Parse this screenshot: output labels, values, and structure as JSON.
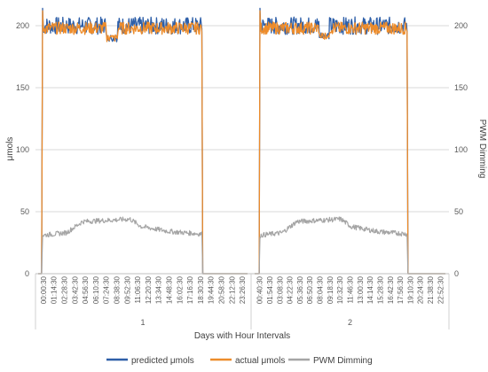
{
  "chart_data": {
    "type": "line",
    "xlabel": "Days with Hour Intervals",
    "ylabel": "μmols",
    "y2label": "PWM Dimming",
    "ylim": [
      0,
      200
    ],
    "y2lim": [
      0,
      200
    ],
    "yticks": [
      "0",
      "50",
      "100",
      "150",
      "200"
    ],
    "y2ticks": [
      "0",
      "50",
      "100",
      "150",
      "200"
    ],
    "grid": "horizontal",
    "legend_position": "bottom",
    "day_groups": [
      "1",
      "2"
    ],
    "x_tick_labels": [
      [
        "00:00:30",
        "01:14:30",
        "02:28:30",
        "03:42:30",
        "04:56:30",
        "06:10:30",
        "07:24:30",
        "08:38:30",
        "09:52:30",
        "11:06:30",
        "12:20:30",
        "13:34:30",
        "14:48:30",
        "16:02:30",
        "17:16:30",
        "18:30:30",
        "19:44:30",
        "20:58:30",
        "22:12:30",
        "23:26:30"
      ],
      [
        "00:40:30",
        "01:54:30",
        "03:08:30",
        "04:22:30",
        "05:36:30",
        "06:50:30",
        "08:04:30",
        "09:18:30",
        "10:32:30",
        "11:46:30",
        "13:00:30",
        "14:14:30",
        "15:28:30",
        "16:42:30",
        "17:56:30",
        "19:10:30",
        "20:24:30",
        "21:38:30",
        "22:52:30"
      ]
    ],
    "series": [
      {
        "name": "predicted μmols",
        "color": "#2e5fa8",
        "axis": "left",
        "night_value": 0,
        "on_value": 200,
        "noise": 7
      },
      {
        "name": "actual μmols",
        "color": "#ed8c2b",
        "axis": "left",
        "night_value": 0,
        "on_value": 198,
        "noise": 5
      },
      {
        "name": "PWM Dimming",
        "color": "#a5a5a5",
        "axis": "right",
        "night_value": 0,
        "profile": [
          [
            0,
            31
          ],
          [
            0.15,
            33
          ],
          [
            0.25,
            42
          ],
          [
            0.55,
            44
          ],
          [
            0.62,
            38
          ],
          [
            0.8,
            34
          ],
          [
            1.0,
            32
          ]
        ],
        "noise": 2
      }
    ],
    "days": [
      {
        "label": "1",
        "on_start": "00:30:30",
        "on_end": "18:45:30",
        "dip": 190
      },
      {
        "label": "2",
        "on_start": "00:40:30",
        "on_end": "19:10:30",
        "dip": 192
      }
    ]
  }
}
